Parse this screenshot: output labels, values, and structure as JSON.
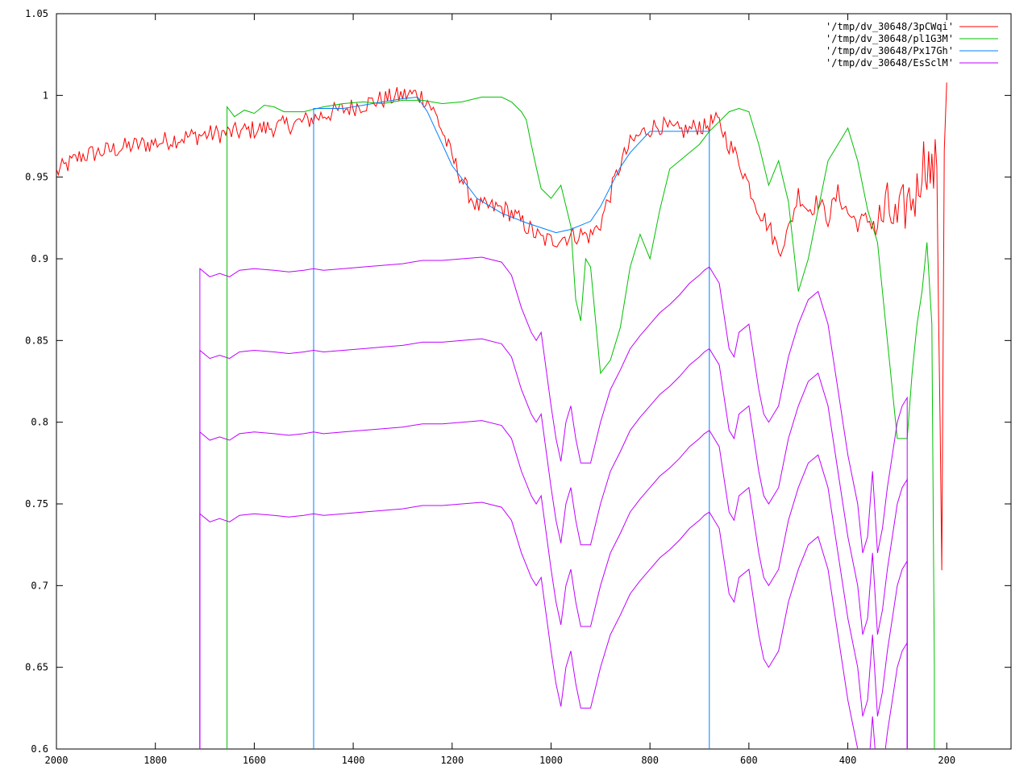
{
  "chart_data": {
    "type": "line",
    "title": "",
    "xlabel": "",
    "ylabel": "",
    "xlim": [
      2000,
      70
    ],
    "ylim": [
      0.6,
      1.05
    ],
    "x_ticks": [
      2000,
      1800,
      1600,
      1400,
      1200,
      1000,
      800,
      600,
      400,
      200
    ],
    "x_tick_labels": [
      "2000",
      "1800",
      "1600",
      "1400",
      "1200",
      "1000",
      "800",
      "600",
      "400",
      "200"
    ],
    "y_ticks": [
      0.6,
      0.65,
      0.7,
      0.75,
      0.8,
      0.85,
      0.9,
      0.95,
      1.0,
      1.05
    ],
    "y_tick_labels": [
      "0.6",
      "0.65",
      "0.7",
      "0.75",
      "0.8",
      "0.85",
      "0.9",
      "0.95",
      "1",
      "1.05"
    ],
    "grid": false,
    "legend_position": "top-right",
    "series": [
      {
        "name": "'/tmp/dv_30648/3pCWqi'",
        "color": "#ff0000",
        "noisy": true,
        "x": [
          2000,
          1950,
          1900,
          1850,
          1800,
          1750,
          1700,
          1650,
          1600,
          1550,
          1500,
          1450,
          1400,
          1350,
          1300,
          1270,
          1250,
          1230,
          1200,
          1170,
          1150,
          1100,
          1080,
          1050,
          1020,
          1000,
          980,
          960,
          940,
          920,
          900,
          880,
          860,
          840,
          820,
          800,
          780,
          760,
          740,
          720,
          700,
          690,
          680,
          670,
          660,
          640,
          620,
          600,
          580,
          560,
          540,
          520,
          500,
          480,
          460,
          440,
          420,
          400,
          380,
          360,
          340,
          320,
          300,
          280,
          260,
          250,
          240,
          230,
          220,
          210,
          205,
          200
        ],
        "y": [
          0.953,
          0.963,
          0.966,
          0.969,
          0.971,
          0.974,
          0.976,
          0.977,
          0.979,
          0.981,
          0.984,
          0.989,
          0.993,
          0.997,
          1.0,
          1.001,
          0.997,
          0.986,
          0.962,
          0.942,
          0.932,
          0.931,
          0.928,
          0.92,
          0.912,
          0.911,
          0.913,
          0.914,
          0.915,
          0.914,
          0.922,
          0.94,
          0.958,
          0.97,
          0.976,
          0.98,
          0.982,
          0.979,
          0.978,
          0.979,
          0.982,
          0.98,
          0.983,
          0.984,
          0.983,
          0.97,
          0.96,
          0.945,
          0.93,
          0.92,
          0.905,
          0.917,
          0.94,
          0.93,
          0.935,
          0.925,
          0.94,
          0.928,
          0.922,
          0.924,
          0.92,
          0.93,
          0.92,
          0.935,
          0.94,
          0.96,
          0.96,
          0.95,
          0.96,
          0.72,
          0.97,
          1.0
        ]
      },
      {
        "name": "'/tmp/dv_30648/pl1G3M'",
        "color": "#00c000",
        "noisy": false,
        "x": [
          1655,
          1655,
          1640,
          1620,
          1600,
          1580,
          1560,
          1540,
          1500,
          1460,
          1420,
          1380,
          1340,
          1300,
          1260,
          1220,
          1180,
          1140,
          1100,
          1080,
          1060,
          1050,
          1040,
          1030,
          1020,
          1000,
          980,
          960,
          950,
          940,
          930,
          920,
          900,
          880,
          860,
          840,
          820,
          800,
          780,
          760,
          740,
          720,
          700,
          680,
          660,
          640,
          620,
          600,
          580,
          560,
          540,
          520,
          500,
          480,
          460,
          440,
          420,
          400,
          380,
          360,
          340,
          320,
          300,
          280,
          270,
          260,
          250,
          240,
          230,
          225,
          225
        ],
        "y": [
          0.6,
          0.993,
          0.987,
          0.991,
          0.989,
          0.994,
          0.993,
          0.99,
          0.99,
          0.993,
          0.995,
          0.996,
          0.995,
          0.997,
          0.997,
          0.995,
          0.996,
          0.999,
          0.999,
          0.996,
          0.99,
          0.985,
          0.97,
          0.956,
          0.943,
          0.937,
          0.945,
          0.92,
          0.875,
          0.862,
          0.9,
          0.895,
          0.83,
          0.838,
          0.858,
          0.895,
          0.915,
          0.9,
          0.93,
          0.955,
          0.96,
          0.965,
          0.97,
          0.978,
          0.984,
          0.99,
          0.992,
          0.99,
          0.97,
          0.945,
          0.96,
          0.935,
          0.88,
          0.9,
          0.93,
          0.96,
          0.97,
          0.98,
          0.96,
          0.93,
          0.91,
          0.85,
          0.79,
          0.79,
          0.83,
          0.86,
          0.88,
          0.91,
          0.86,
          0.65,
          0.6
        ]
      },
      {
        "name": "'/tmp/dv_30648/Px17Gh'",
        "color": "#0080ff",
        "noisy": false,
        "x": [
          1480,
          1480,
          1420,
          1380,
          1340,
          1300,
          1270,
          1250,
          1200,
          1150,
          1100,
          1050,
          1000,
          990,
          960,
          920,
          900,
          880,
          860,
          840,
          800,
          760,
          720,
          680,
          680
        ],
        "y": [
          0.6,
          0.992,
          0.992,
          0.994,
          0.996,
          0.998,
          0.999,
          0.99,
          0.957,
          0.937,
          0.928,
          0.922,
          0.917,
          0.916,
          0.918,
          0.923,
          0.932,
          0.944,
          0.956,
          0.965,
          0.978,
          0.978,
          0.978,
          0.978,
          0.6
        ]
      },
      {
        "name": "'/tmp/dv_30648/EsSclM'",
        "color": "#c000ff",
        "noisy": false,
        "x": [
          1710,
          1710,
          1690,
          1670,
          1650,
          1630,
          1600,
          1560,
          1530,
          1500,
          1480,
          1460,
          1420,
          1380,
          1340,
          1300,
          1260,
          1220,
          1180,
          1140,
          1100,
          1080,
          1060,
          1040,
          1030,
          1020,
          1000,
          990,
          980,
          970,
          960,
          950,
          940,
          920,
          900,
          880,
          860,
          840,
          820,
          800,
          780,
          760,
          740,
          720,
          700,
          690,
          680,
          660,
          640,
          630,
          620,
          600,
          580,
          570,
          560,
          540,
          520,
          500,
          480,
          460,
          440,
          420,
          400,
          380,
          370,
          360,
          350,
          340,
          330,
          320,
          310,
          300,
          290,
          280,
          280
        ],
        "y": [
          0.6,
          0.894,
          0.889,
          0.891,
          0.889,
          0.893,
          0.894,
          0.893,
          0.892,
          0.893,
          0.894,
          0.893,
          0.894,
          0.895,
          0.896,
          0.897,
          0.899,
          0.899,
          0.9,
          0.901,
          0.898,
          0.89,
          0.87,
          0.855,
          0.85,
          0.855,
          0.81,
          0.79,
          0.776,
          0.8,
          0.81,
          0.79,
          0.775,
          0.775,
          0.8,
          0.82,
          0.832,
          0.845,
          0.853,
          0.86,
          0.867,
          0.872,
          0.878,
          0.885,
          0.89,
          0.893,
          0.895,
          0.885,
          0.845,
          0.84,
          0.855,
          0.86,
          0.82,
          0.805,
          0.8,
          0.81,
          0.84,
          0.86,
          0.875,
          0.88,
          0.86,
          0.82,
          0.78,
          0.75,
          0.72,
          0.73,
          0.77,
          0.72,
          0.735,
          0.76,
          0.78,
          0.8,
          0.81,
          0.815,
          0.6
        ],
        "offsets": [
          0,
          -0.05,
          -0.1,
          -0.15
        ]
      }
    ]
  }
}
